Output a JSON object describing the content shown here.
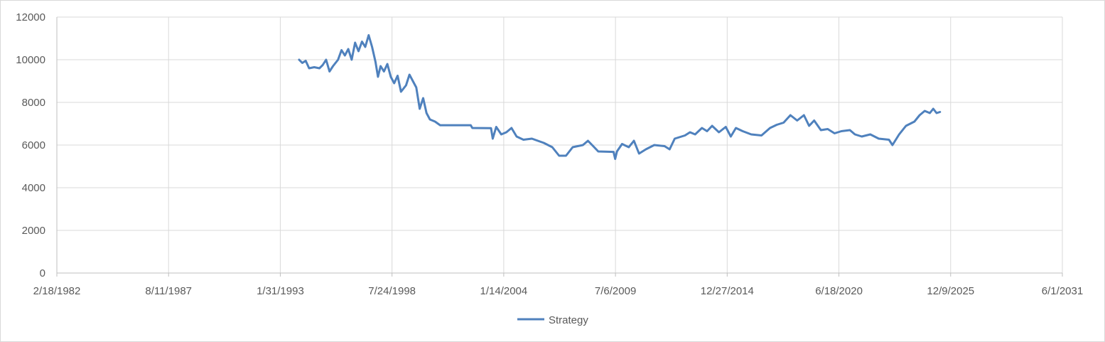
{
  "chart_data": {
    "type": "line",
    "title": "",
    "xlabel": "",
    "ylabel": "",
    "ylim": [
      0,
      12000
    ],
    "yticks": [
      0,
      2000,
      4000,
      6000,
      8000,
      10000,
      12000
    ],
    "xlim": [
      "1982-02-18",
      "2031-06-01"
    ],
    "xticks": [
      "2/18/1982",
      "8/11/1987",
      "1/31/1993",
      "7/24/1998",
      "1/14/2004",
      "7/6/2009",
      "12/27/2014",
      "6/18/2020",
      "12/9/2025",
      "6/1/2031"
    ],
    "grid": true,
    "legend": "bottom",
    "line_color": "#4f81bd",
    "series": [
      {
        "name": "Strategy",
        "points": [
          [
            "1994-01-03",
            10000
          ],
          [
            "1994-03-01",
            9850
          ],
          [
            "1994-05-01",
            9950
          ],
          [
            "1994-07-01",
            9600
          ],
          [
            "1994-10-01",
            9650
          ],
          [
            "1995-01-01",
            9600
          ],
          [
            "1995-03-01",
            9750
          ],
          [
            "1995-05-01",
            10000
          ],
          [
            "1995-07-01",
            9450
          ],
          [
            "1995-09-01",
            9700
          ],
          [
            "1995-12-01",
            10000
          ],
          [
            "1996-02-01",
            10450
          ],
          [
            "1996-04-01",
            10200
          ],
          [
            "1996-06-01",
            10500
          ],
          [
            "1996-08-01",
            10000
          ],
          [
            "1996-10-01",
            10800
          ],
          [
            "1996-12-01",
            10400
          ],
          [
            "1997-02-01",
            10850
          ],
          [
            "1997-04-01",
            10600
          ],
          [
            "1997-06-01",
            11150
          ],
          [
            "1997-08-01",
            10600
          ],
          [
            "1997-10-01",
            9900
          ],
          [
            "1997-11-15",
            9200
          ],
          [
            "1998-01-01",
            9700
          ],
          [
            "1998-03-01",
            9450
          ],
          [
            "1998-05-01",
            9800
          ],
          [
            "1998-07-01",
            9200
          ],
          [
            "1998-09-01",
            8900
          ],
          [
            "1998-11-01",
            9250
          ],
          [
            "1999-01-01",
            8500
          ],
          [
            "1999-04-01",
            8800
          ],
          [
            "1999-06-01",
            9300
          ],
          [
            "1999-08-01",
            9000
          ],
          [
            "1999-10-01",
            8700
          ],
          [
            "1999-12-01",
            7700
          ],
          [
            "2000-02-01",
            8200
          ],
          [
            "2000-04-01",
            7500
          ],
          [
            "2000-06-01",
            7200
          ],
          [
            "2000-09-01",
            7100
          ],
          [
            "2000-12-01",
            6930
          ],
          [
            "2002-06-01",
            6930
          ],
          [
            "2002-07-01",
            6800
          ],
          [
            "2003-06-01",
            6790
          ],
          [
            "2003-07-01",
            6300
          ],
          [
            "2003-09-01",
            6850
          ],
          [
            "2003-12-01",
            6500
          ],
          [
            "2004-03-01",
            6600
          ],
          [
            "2004-06-01",
            6800
          ],
          [
            "2004-09-01",
            6400
          ],
          [
            "2005-01-01",
            6250
          ],
          [
            "2005-06-01",
            6300
          ],
          [
            "2006-01-01",
            6100
          ],
          [
            "2006-06-01",
            5900
          ],
          [
            "2006-10-01",
            5500
          ],
          [
            "2007-02-01",
            5500
          ],
          [
            "2007-06-01",
            5900
          ],
          [
            "2007-12-01",
            6000
          ],
          [
            "2008-03-01",
            6200
          ],
          [
            "2008-06-01",
            5950
          ],
          [
            "2008-09-01",
            5700
          ],
          [
            "2009-06-01",
            5680
          ],
          [
            "2009-07-01",
            5350
          ],
          [
            "2009-08-01",
            5700
          ],
          [
            "2009-11-01",
            6050
          ],
          [
            "2010-03-01",
            5900
          ],
          [
            "2010-06-01",
            6200
          ],
          [
            "2010-09-01",
            5600
          ],
          [
            "2011-01-01",
            5800
          ],
          [
            "2011-06-01",
            6000
          ],
          [
            "2011-12-01",
            5950
          ],
          [
            "2012-03-01",
            5800
          ],
          [
            "2012-06-01",
            6300
          ],
          [
            "2012-12-01",
            6450
          ],
          [
            "2013-03-01",
            6600
          ],
          [
            "2013-06-01",
            6500
          ],
          [
            "2013-10-01",
            6800
          ],
          [
            "2014-01-01",
            6650
          ],
          [
            "2014-04-01",
            6900
          ],
          [
            "2014-08-01",
            6600
          ],
          [
            "2014-12-01",
            6850
          ],
          [
            "2015-03-01",
            6400
          ],
          [
            "2015-06-01",
            6800
          ],
          [
            "2015-10-01",
            6650
          ],
          [
            "2016-03-01",
            6500
          ],
          [
            "2016-09-01",
            6450
          ],
          [
            "2017-02-01",
            6800
          ],
          [
            "2017-06-01",
            6950
          ],
          [
            "2017-10-01",
            7050
          ],
          [
            "2018-02-01",
            7400
          ],
          [
            "2018-06-01",
            7150
          ],
          [
            "2018-10-01",
            7400
          ],
          [
            "2019-01-01",
            6900
          ],
          [
            "2019-04-01",
            7150
          ],
          [
            "2019-08-01",
            6700
          ],
          [
            "2019-12-01",
            6750
          ],
          [
            "2020-04-01",
            6550
          ],
          [
            "2020-08-01",
            6650
          ],
          [
            "2021-01-01",
            6700
          ],
          [
            "2021-04-01",
            6500
          ],
          [
            "2021-08-01",
            6400
          ],
          [
            "2022-01-01",
            6500
          ],
          [
            "2022-06-01",
            6300
          ],
          [
            "2022-12-01",
            6250
          ],
          [
            "2023-02-01",
            6000
          ],
          [
            "2023-06-01",
            6500
          ],
          [
            "2023-10-01",
            6900
          ],
          [
            "2024-03-01",
            7100
          ],
          [
            "2024-06-01",
            7400
          ],
          [
            "2024-09-01",
            7600
          ],
          [
            "2024-12-01",
            7500
          ],
          [
            "2025-02-01",
            7700
          ],
          [
            "2025-04-01",
            7500
          ],
          [
            "2025-06-01",
            7550
          ]
        ]
      }
    ]
  }
}
